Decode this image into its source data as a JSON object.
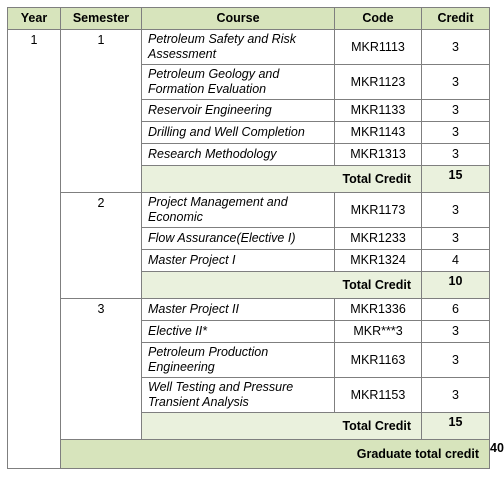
{
  "headers": [
    "Year",
    "Semester",
    "Course",
    "Code",
    "Credit"
  ],
  "year": "1",
  "semesters": [
    {
      "number": "1",
      "rows": [
        {
          "course": "Petroleum Safety and Risk Assessment",
          "code": "MKR1113",
          "credit": "3"
        },
        {
          "course": "Petroleum Geology and Formation Evaluation",
          "code": "MKR1123",
          "credit": "3"
        },
        {
          "course": "Reservoir Engineering",
          "code": "MKR1133",
          "credit": "3"
        },
        {
          "course": "Drilling and Well Completion",
          "code": "MKR1143",
          "credit": "3"
        },
        {
          "course": "Research Methodology",
          "code": "MKR1313",
          "credit": "3"
        }
      ],
      "total_label": "Total Credit",
      "total": "15"
    },
    {
      "number": "2",
      "rows": [
        {
          "course": "Project Management and Economic",
          "code": "MKR1173",
          "credit": "3"
        },
        {
          "course": "Flow Assurance(Elective I)",
          "code": "MKR1233",
          "credit": "3"
        },
        {
          "course": "Master Project I",
          "code": "MKR1324",
          "credit": "4"
        }
      ],
      "total_label": "Total Credit",
      "total": "10"
    },
    {
      "number": "3",
      "rows": [
        {
          "course": "Master Project II",
          "code": "MKR1336",
          "credit": "6"
        },
        {
          "course": "Elective II*",
          "code": "MKR***3",
          "credit": "3"
        },
        {
          "course": "Petroleum Production Engineering",
          "code": "MKR1163",
          "credit": "3"
        },
        {
          "course": "Well Testing and Pressure Transient Analysis",
          "code": "MKR1153",
          "credit": "3"
        }
      ],
      "total_label": "Total Credit",
      "total": "15"
    }
  ],
  "graduate_label": "Graduate total credit",
  "graduate_total": "40"
}
